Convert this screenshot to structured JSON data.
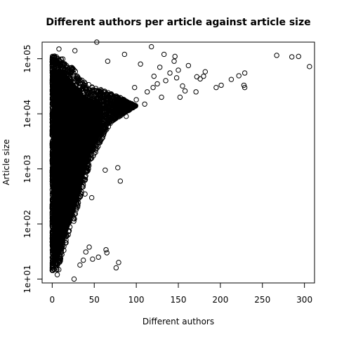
{
  "chart_data": {
    "type": "scatter",
    "title": "Different authors per article against article size",
    "xlabel": "Different authors",
    "ylabel": "Article size",
    "xlim": [
      -12,
      312
    ],
    "ylim": [
      8.5,
      200000
    ],
    "ylog": true,
    "grid": false,
    "x_ticks": [
      0,
      50,
      100,
      150,
      200,
      250,
      300
    ],
    "x_tick_labels": [
      "0",
      "50",
      "100",
      "150",
      "200",
      "250",
      "300"
    ],
    "y_ticks": [
      10,
      100,
      1000,
      10000,
      100000
    ],
    "y_tick_labels": [
      "1e+01",
      "1e+02",
      "1e+03",
      "1e+04",
      "1e+05"
    ],
    "marker": "open-circle",
    "dense_region": {
      "x_range": [
        0,
        110
      ],
      "y_range": [
        14,
        150000
      ]
    },
    "points": [
      {
        "x": 267,
        "y": 115000
      },
      {
        "x": 285,
        "y": 108000
      },
      {
        "x": 293,
        "y": 110000
      },
      {
        "x": 306,
        "y": 72000
      },
      {
        "x": 229,
        "y": 55000
      },
      {
        "x": 222,
        "y": 49000
      },
      {
        "x": 213,
        "y": 42000
      },
      {
        "x": 201,
        "y": 33000
      },
      {
        "x": 195,
        "y": 30000
      },
      {
        "x": 228,
        "y": 33000
      },
      {
        "x": 229,
        "y": 30000
      },
      {
        "x": 182,
        "y": 58000
      },
      {
        "x": 180,
        "y": 48000
      },
      {
        "x": 176,
        "y": 43000
      },
      {
        "x": 172,
        "y": 47000
      },
      {
        "x": 171,
        "y": 25000
      },
      {
        "x": 155,
        "y": 32000
      },
      {
        "x": 158,
        "y": 26000
      },
      {
        "x": 162,
        "y": 75000
      },
      {
        "x": 150,
        "y": 62000
      },
      {
        "x": 145,
        "y": 90000
      },
      {
        "x": 146,
        "y": 110000
      },
      {
        "x": 133,
        "y": 120000
      },
      {
        "x": 118,
        "y": 165000
      },
      {
        "x": 140,
        "y": 55000
      },
      {
        "x": 148,
        "y": 45000
      },
      {
        "x": 152,
        "y": 20000
      },
      {
        "x": 130,
        "y": 20000
      },
      {
        "x": 128,
        "y": 70000
      },
      {
        "x": 121,
        "y": 48000
      },
      {
        "x": 125,
        "y": 35000
      },
      {
        "x": 113,
        "y": 25000
      },
      {
        "x": 110,
        "y": 15000
      },
      {
        "x": 105,
        "y": 80000
      },
      {
        "x": 98,
        "y": 30000
      },
      {
        "x": 100,
        "y": 18000
      },
      {
        "x": 92,
        "y": 12000
      },
      {
        "x": 88,
        "y": 9000
      },
      {
        "x": 120,
        "y": 30000
      },
      {
        "x": 135,
        "y": 40000
      },
      {
        "x": 81,
        "y": 600
      },
      {
        "x": 78,
        "y": 1050
      },
      {
        "x": 63,
        "y": 950
      },
      {
        "x": 64,
        "y": 34
      },
      {
        "x": 65,
        "y": 30
      },
      {
        "x": 79,
        "y": 20
      },
      {
        "x": 76,
        "y": 16
      },
      {
        "x": 55,
        "y": 25
      },
      {
        "x": 48,
        "y": 23
      },
      {
        "x": 44,
        "y": 38
      },
      {
        "x": 40,
        "y": 31
      },
      {
        "x": 37,
        "y": 22
      },
      {
        "x": 26,
        "y": 10
      },
      {
        "x": 6,
        "y": 12
      },
      {
        "x": 47,
        "y": 300
      },
      {
        "x": 39,
        "y": 350
      },
      {
        "x": 37,
        "y": 650
      },
      {
        "x": 53,
        "y": 200000
      },
      {
        "x": 8,
        "y": 150000
      },
      {
        "x": 27,
        "y": 140000
      },
      {
        "x": 86,
        "y": 120000
      },
      {
        "x": 66,
        "y": 90000
      },
      {
        "x": 33,
        "y": 18
      }
    ]
  }
}
